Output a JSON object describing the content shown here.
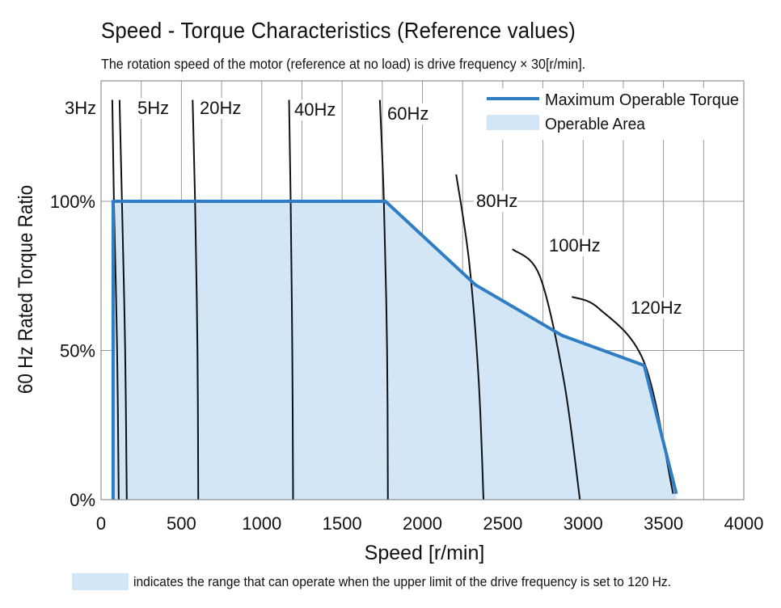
{
  "chart_data": {
    "type": "line",
    "title": "Speed - Torque Characteristics (Reference values)",
    "subtitle": "The rotation speed of the motor (reference at no load) is drive frequency × 30[r/min].",
    "xlabel": "Speed [r/min]",
    "ylabel": "60 Hz Rated Torque Ratio",
    "xlim": [
      0,
      4000
    ],
    "ylim": [
      0,
      135
    ],
    "x_ticks": [
      0,
      500,
      1000,
      1500,
      2000,
      2500,
      3000,
      3500,
      4000
    ],
    "x_tick_labels": [
      "0",
      "500",
      "1000",
      "1500",
      "2000",
      "2500",
      "3000",
      "3500",
      "4000"
    ],
    "y_ticks": [
      0,
      50,
      100
    ],
    "y_tick_labels": [
      "0%",
      "50%",
      "100%"
    ],
    "grid": true,
    "legend": {
      "position": "top-right",
      "entries": [
        {
          "label": "Maximum Operable Torque",
          "kind": "line",
          "color": "#2f7ec4"
        },
        {
          "label": "Operable Area",
          "kind": "area",
          "color": "#d2e6f5"
        }
      ]
    },
    "series": [
      {
        "name": "Maximum Operable Torque",
        "color": "#2f7ec4",
        "points": [
          [
            75,
            0
          ],
          [
            75,
            100
          ],
          [
            1770,
            100
          ],
          [
            2330,
            72
          ],
          [
            2870,
            55
          ],
          [
            3380,
            45
          ],
          [
            3580,
            2
          ]
        ]
      }
    ],
    "frequency_curves": [
      {
        "label": "3Hz",
        "color": "#111111",
        "points": [
          [
            70,
            134
          ],
          [
            80,
            100
          ],
          [
            100,
            50
          ],
          [
            110,
            0
          ]
        ]
      },
      {
        "label": "5Hz",
        "color": "#111111",
        "points": [
          [
            115,
            134
          ],
          [
            130,
            100
          ],
          [
            150,
            50
          ],
          [
            160,
            0
          ]
        ]
      },
      {
        "label": "20Hz",
        "color": "#111111",
        "points": [
          [
            570,
            134
          ],
          [
            585,
            100
          ],
          [
            600,
            50
          ],
          [
            605,
            0
          ]
        ]
      },
      {
        "label": "40Hz",
        "color": "#111111",
        "points": [
          [
            1170,
            134
          ],
          [
            1180,
            100
          ],
          [
            1190,
            50
          ],
          [
            1195,
            0
          ]
        ]
      },
      {
        "label": "60Hz",
        "color": "#111111",
        "points": [
          [
            1735,
            134
          ],
          [
            1760,
            100
          ],
          [
            1780,
            50
          ],
          [
            1785,
            0
          ]
        ]
      },
      {
        "label": "80Hz",
        "color": "#111111",
        "points": [
          [
            2210,
            109
          ],
          [
            2290,
            80
          ],
          [
            2350,
            40
          ],
          [
            2380,
            0
          ]
        ]
      },
      {
        "label": "100Hz",
        "color": "#111111",
        "points": [
          [
            2560,
            84
          ],
          [
            2730,
            75
          ],
          [
            2880,
            40
          ],
          [
            2980,
            0
          ]
        ]
      },
      {
        "label": "120Hz",
        "color": "#111111",
        "points": [
          [
            2930,
            68
          ],
          [
            3100,
            64
          ],
          [
            3380,
            46
          ],
          [
            3560,
            2
          ]
        ]
      }
    ],
    "frequency_labels": [
      "3Hz",
      "5Hz",
      "20Hz",
      "40Hz",
      "60Hz",
      "80Hz",
      "100Hz",
      "120Hz"
    ],
    "area_color": "#d2e6f5"
  },
  "footnote": "indicates the range that can operate when the upper limit of the drive frequency is set to 120 Hz."
}
